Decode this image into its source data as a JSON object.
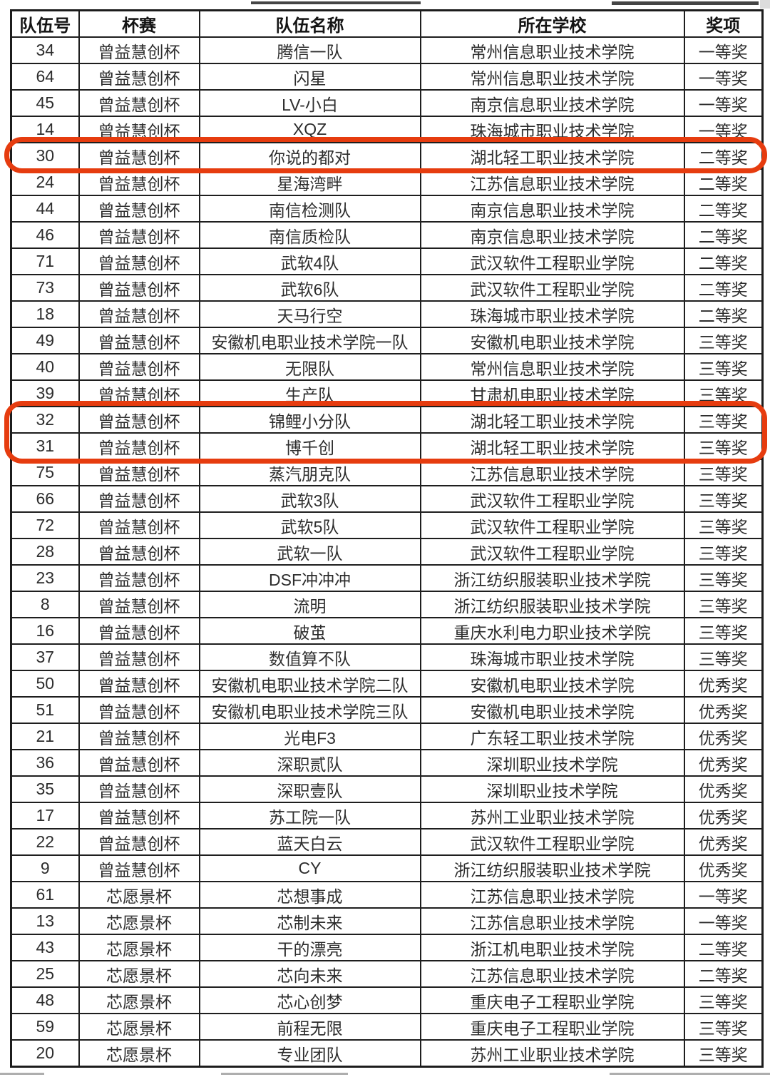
{
  "table": {
    "columns": [
      {
        "key": "team_no",
        "label": "队伍号"
      },
      {
        "key": "cup",
        "label": "杯赛"
      },
      {
        "key": "team",
        "label": "队伍名称"
      },
      {
        "key": "school",
        "label": "所在学校"
      },
      {
        "key": "award",
        "label": "奖项"
      }
    ],
    "rows": [
      {
        "team_no": "34",
        "cup": "曾益慧创杯",
        "team": "腾信一队",
        "school": "常州信息职业技术学院",
        "award": "一等奖"
      },
      {
        "team_no": "64",
        "cup": "曾益慧创杯",
        "team": "闪星",
        "school": "常州信息职业技术学院",
        "award": "一等奖"
      },
      {
        "team_no": "45",
        "cup": "曾益慧创杯",
        "team": "LV-小白",
        "school": "南京信息职业技术学院",
        "award": "一等奖"
      },
      {
        "team_no": "14",
        "cup": "曾益慧创杯",
        "team": "XQZ",
        "school": "珠海城市职业技术学院",
        "award": "一等奖"
      },
      {
        "team_no": "30",
        "cup": "曾益慧创杯",
        "team": "你说的都对",
        "school": "湖北轻工职业技术学院",
        "award": "二等奖"
      },
      {
        "team_no": "24",
        "cup": "曾益慧创杯",
        "team": "星海湾畔",
        "school": "江苏信息职业技术学院",
        "award": "二等奖"
      },
      {
        "team_no": "44",
        "cup": "曾益慧创杯",
        "team": "南信检测队",
        "school": "南京信息职业技术学院",
        "award": "二等奖"
      },
      {
        "team_no": "46",
        "cup": "曾益慧创杯",
        "team": "南信质检队",
        "school": "南京信息职业技术学院",
        "award": "二等奖"
      },
      {
        "team_no": "71",
        "cup": "曾益慧创杯",
        "team": "武软4队",
        "school": "武汉软件工程职业学院",
        "award": "二等奖"
      },
      {
        "team_no": "73",
        "cup": "曾益慧创杯",
        "team": "武软6队",
        "school": "武汉软件工程职业学院",
        "award": "二等奖"
      },
      {
        "team_no": "18",
        "cup": "曾益慧创杯",
        "team": "天马行空",
        "school": "珠海城市职业技术学院",
        "award": "二等奖"
      },
      {
        "team_no": "49",
        "cup": "曾益慧创杯",
        "team": "安徽机电职业技术学院一队",
        "school": "安徽机电职业技术学院",
        "award": "三等奖"
      },
      {
        "team_no": "40",
        "cup": "曾益慧创杯",
        "team": "无限队",
        "school": "常州信息职业技术学院",
        "award": "三等奖"
      },
      {
        "team_no": "39",
        "cup": "曾益慧创杯",
        "team": "生产队",
        "school": "甘肃机电职业技术学院",
        "award": "三等奖"
      },
      {
        "team_no": "32",
        "cup": "曾益慧创杯",
        "team": "锦鲤小分队",
        "school": "湖北轻工职业技术学院",
        "award": "三等奖"
      },
      {
        "team_no": "31",
        "cup": "曾益慧创杯",
        "team": "博千创",
        "school": "湖北轻工职业技术学院",
        "award": "三等奖"
      },
      {
        "team_no": "75",
        "cup": "曾益慧创杯",
        "team": "蒸汽朋克队",
        "school": "江苏信息职业技术学院",
        "award": "三等奖"
      },
      {
        "team_no": "66",
        "cup": "曾益慧创杯",
        "team": "武软3队",
        "school": "武汉软件工程职业学院",
        "award": "三等奖"
      },
      {
        "team_no": "72",
        "cup": "曾益慧创杯",
        "team": "武软5队",
        "school": "武汉软件工程职业学院",
        "award": "三等奖"
      },
      {
        "team_no": "28",
        "cup": "曾益慧创杯",
        "team": "武软一队",
        "school": "武汉软件工程职业学院",
        "award": "三等奖"
      },
      {
        "team_no": "23",
        "cup": "曾益慧创杯",
        "team": "DSF冲冲冲",
        "school": "浙江纺织服装职业技术学院",
        "award": "三等奖"
      },
      {
        "team_no": "8",
        "cup": "曾益慧创杯",
        "team": "流明",
        "school": "浙江纺织服装职业技术学院",
        "award": "三等奖"
      },
      {
        "team_no": "16",
        "cup": "曾益慧创杯",
        "team": "破茧",
        "school": "重庆水利电力职业技术学院",
        "award": "三等奖"
      },
      {
        "team_no": "37",
        "cup": "曾益慧创杯",
        "team": "数值算不队",
        "school": "珠海城市职业技术学院",
        "award": "三等奖"
      },
      {
        "team_no": "50",
        "cup": "曾益慧创杯",
        "team": "安徽机电职业技术学院二队",
        "school": "安徽机电职业技术学院",
        "award": "优秀奖"
      },
      {
        "team_no": "51",
        "cup": "曾益慧创杯",
        "team": "安徽机电职业技术学院三队",
        "school": "安徽机电职业技术学院",
        "award": "优秀奖"
      },
      {
        "team_no": "21",
        "cup": "曾益慧创杯",
        "team": "光电F3",
        "school": "广东轻工职业技术学院",
        "award": "优秀奖"
      },
      {
        "team_no": "36",
        "cup": "曾益慧创杯",
        "team": "深职贰队",
        "school": "深圳职业技术学院",
        "award": "优秀奖"
      },
      {
        "team_no": "35",
        "cup": "曾益慧创杯",
        "team": "深职壹队",
        "school": "深圳职业技术学院",
        "award": "优秀奖"
      },
      {
        "team_no": "17",
        "cup": "曾益慧创杯",
        "team": "苏工院一队",
        "school": "苏州工业职业技术学院",
        "award": "优秀奖"
      },
      {
        "team_no": "22",
        "cup": "曾益慧创杯",
        "team": "蓝天白云",
        "school": "武汉软件工程职业学院",
        "award": "优秀奖"
      },
      {
        "team_no": "9",
        "cup": "曾益慧创杯",
        "team": "CY",
        "school": "浙江纺织服装职业技术学院",
        "award": "优秀奖"
      },
      {
        "team_no": "61",
        "cup": "芯愿景杯",
        "team": "芯想事成",
        "school": "江苏信息职业技术学院",
        "award": "一等奖"
      },
      {
        "team_no": "13",
        "cup": "芯愿景杯",
        "team": "芯制未来",
        "school": "江苏信息职业技术学院",
        "award": "一等奖"
      },
      {
        "team_no": "43",
        "cup": "芯愿景杯",
        "team": "干的漂亮",
        "school": "浙江机电职业技术学院",
        "award": "二等奖"
      },
      {
        "team_no": "25",
        "cup": "芯愿景杯",
        "team": "芯向未来",
        "school": "江苏信息职业技术学院",
        "award": "二等奖"
      },
      {
        "team_no": "48",
        "cup": "芯愿景杯",
        "team": "芯心创梦",
        "school": "重庆电子工程职业学院",
        "award": "三等奖"
      },
      {
        "team_no": "59",
        "cup": "芯愿景杯",
        "team": "前程无限",
        "school": "重庆电子工程职业学院",
        "award": "三等奖"
      },
      {
        "team_no": "20",
        "cup": "芯愿景杯",
        "team": "专业团队",
        "school": "苏州工业职业技术学院",
        "award": "三等奖"
      }
    ],
    "highlights": {
      "color": "#e63c0f",
      "groups": [
        {
          "first_row": 4,
          "last_row": 4
        },
        {
          "first_row": 14,
          "last_row": 15
        }
      ]
    }
  }
}
